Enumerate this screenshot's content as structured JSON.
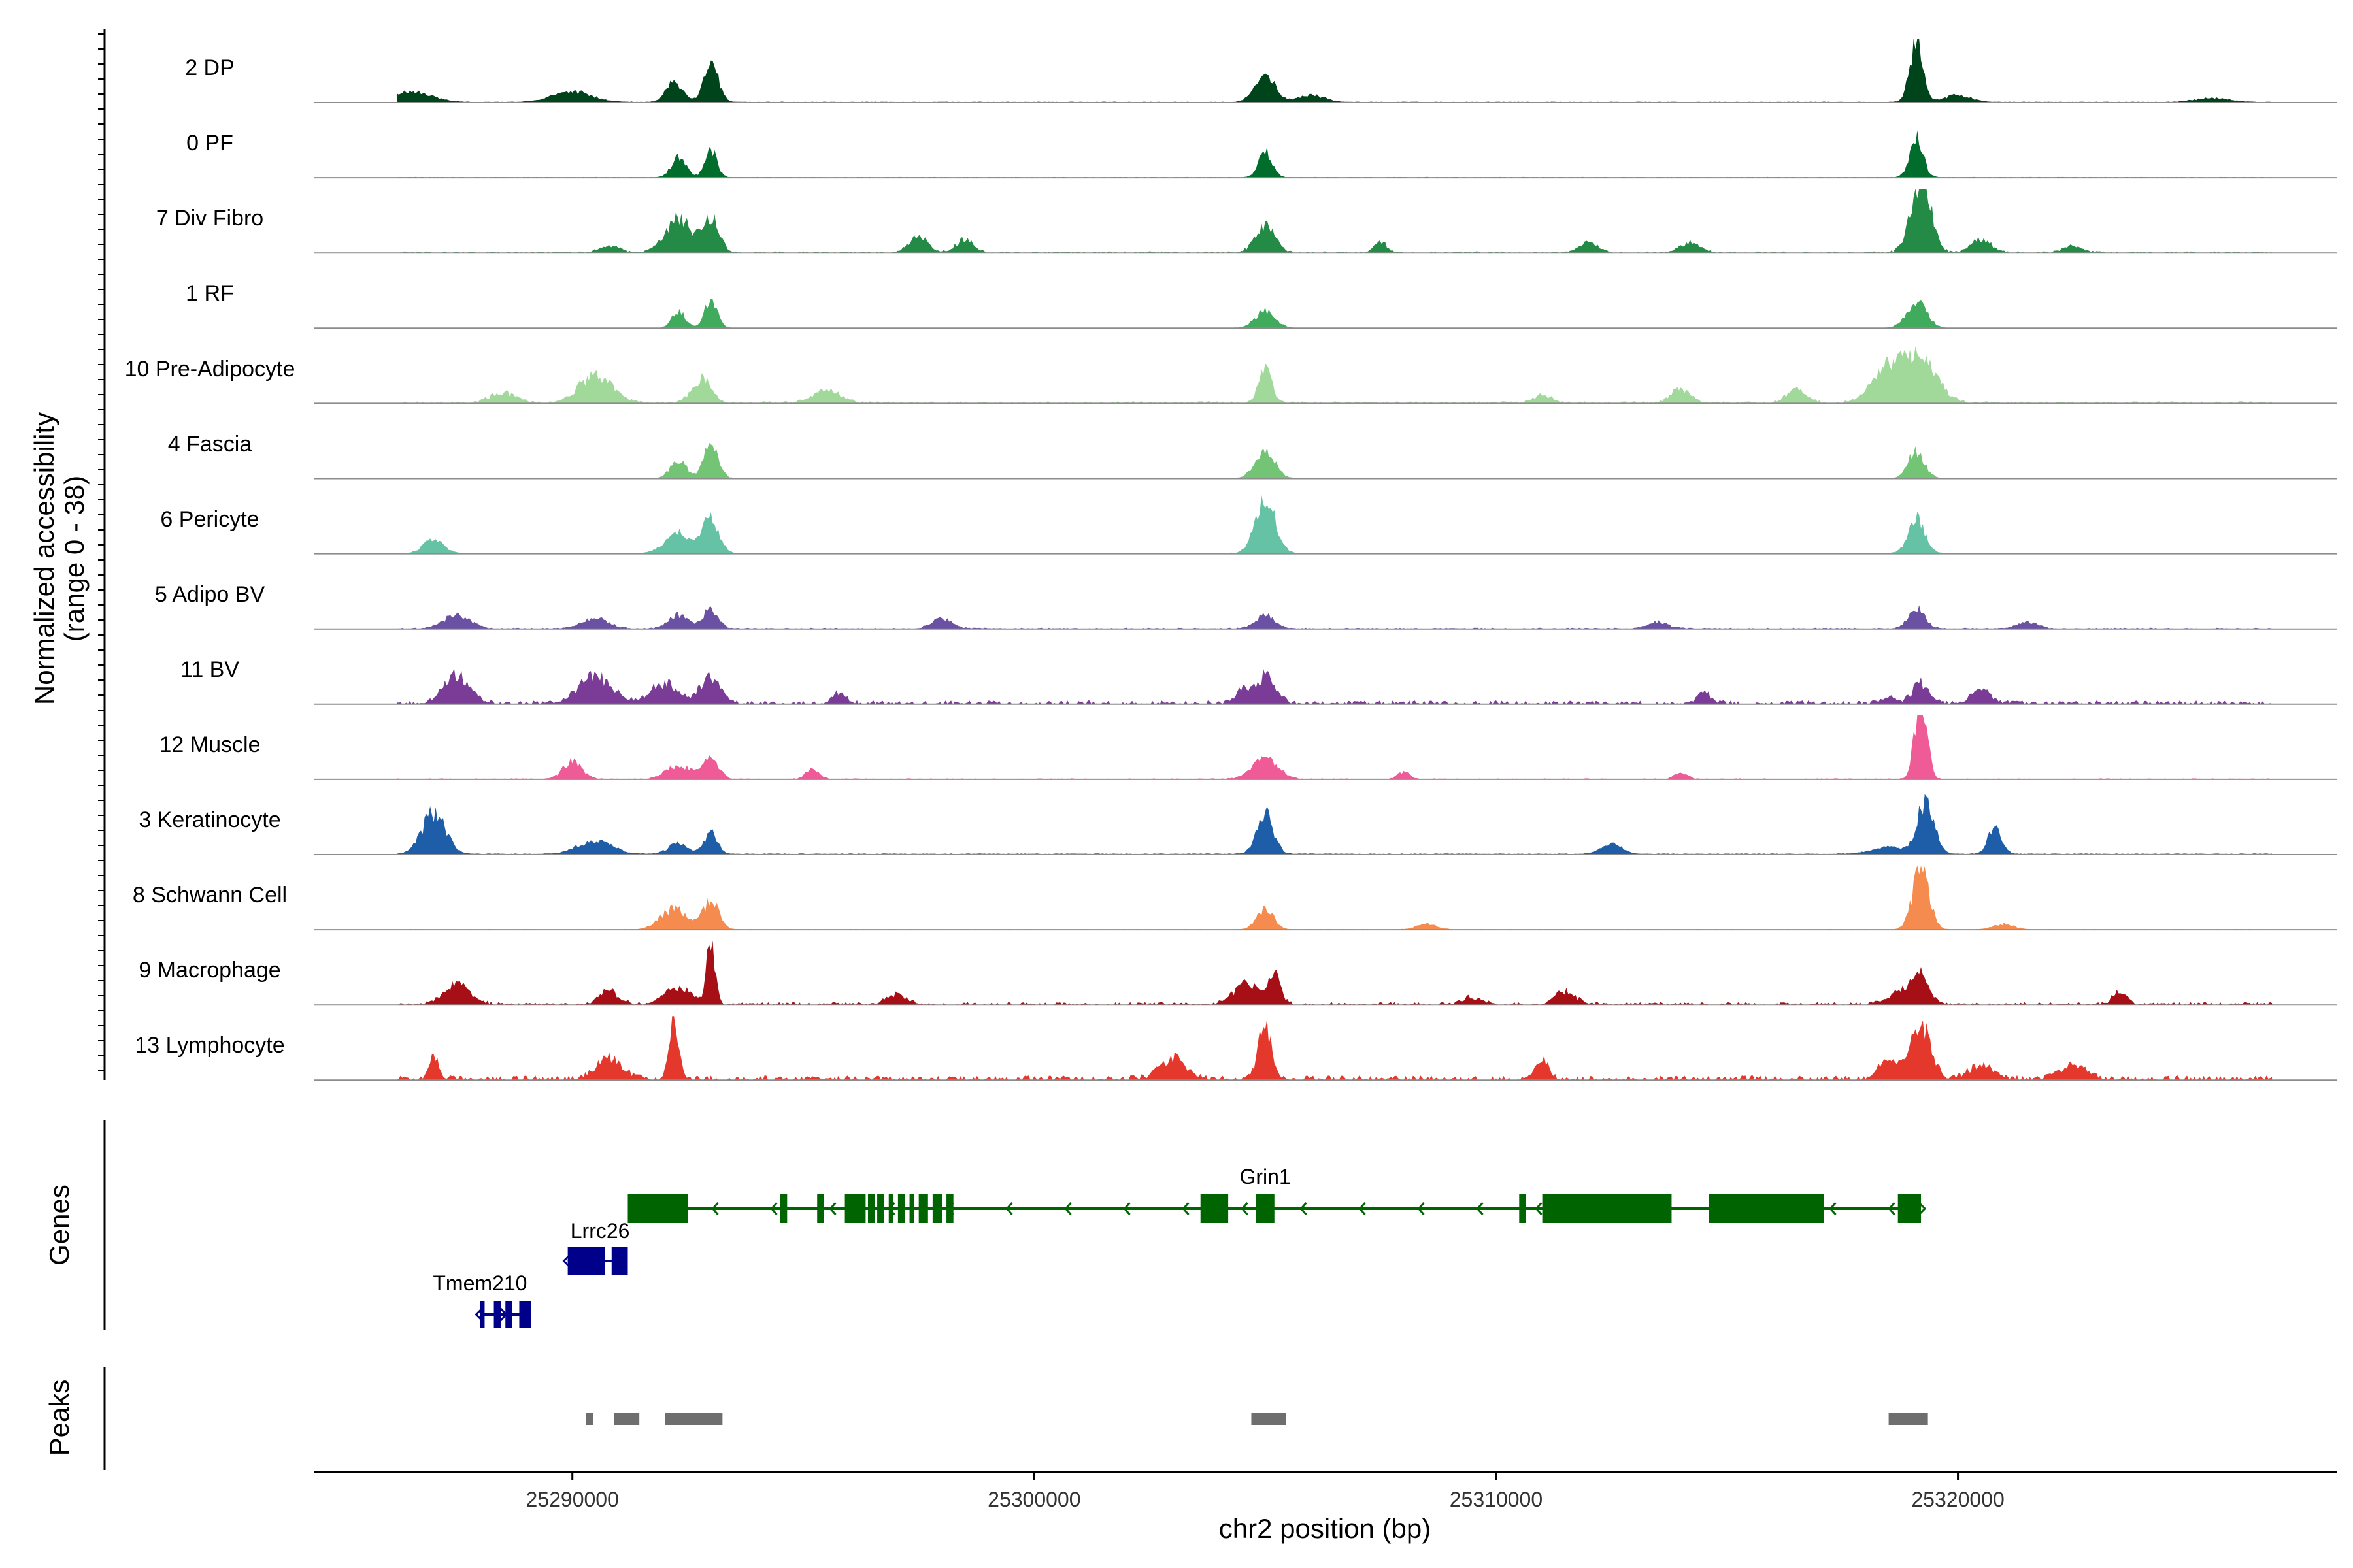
{
  "chart_data": {
    "type": "area",
    "title": "",
    "y_axis_title": "Normalized accessibility",
    "y_axis_subtitle": "(range 0 - 38)",
    "ylim": [
      0,
      38
    ],
    "xlabel": "chr2 position (bp)",
    "xlim": [
      25284400,
      25328200
    ],
    "x_ticks": [
      25290000,
      25300000,
      25310000,
      25320000
    ],
    "x_tick_labels": [
      "25290000",
      "25300000",
      "25310000",
      "25320000"
    ],
    "genes_label": "Genes",
    "peaks_label": "Peaks",
    "tracks": [
      {
        "name": "2 DP",
        "color": "#00441b",
        "baseline": 0.06,
        "noise": 0.05,
        "peaks": [
          [
            25286500,
            1.5,
            600
          ],
          [
            25290000,
            1.5,
            600
          ],
          [
            25292200,
            3,
            250
          ],
          [
            25293000,
            6,
            220
          ],
          [
            25305000,
            4,
            300
          ],
          [
            25306000,
            1,
            400
          ],
          [
            25319100,
            9,
            200
          ],
          [
            25320000,
            1,
            400
          ],
          [
            25325500,
            0.6,
            500
          ]
        ]
      },
      {
        "name": "0 PF",
        "color": "#006d2c",
        "baseline": 0.05,
        "noise": 0.04,
        "peaks": [
          [
            25292300,
            3,
            220
          ],
          [
            25293000,
            4,
            180
          ],
          [
            25305000,
            4,
            200
          ],
          [
            25319100,
            6,
            200
          ]
        ]
      },
      {
        "name": "7 Div Fibro",
        "color": "#238b45",
        "baseline": 0.0,
        "noise": 0.2,
        "peaks": [
          [
            25290800,
            1,
            300
          ],
          [
            25292300,
            5,
            400
          ],
          [
            25293000,
            5,
            250
          ],
          [
            25297500,
            2.5,
            300
          ],
          [
            25298500,
            2,
            250
          ],
          [
            25305000,
            4,
            300
          ],
          [
            25307500,
            1.5,
            200
          ],
          [
            25312000,
            1.5,
            300
          ],
          [
            25314200,
            1.5,
            300
          ],
          [
            25319200,
            11,
            300
          ],
          [
            25320500,
            2,
            300
          ],
          [
            25322500,
            1,
            300
          ]
        ]
      },
      {
        "name": "1 RF",
        "color": "#41ab5d",
        "baseline": 0.03,
        "noise": 0.03,
        "peaks": [
          [
            25292300,
            2.5,
            200
          ],
          [
            25293000,
            4,
            200
          ],
          [
            25305000,
            2.5,
            300
          ],
          [
            25319100,
            4,
            300
          ]
        ]
      },
      {
        "name": "10 Pre-Adipocyte",
        "color": "#a1d99b",
        "baseline": 0.0,
        "noise": 0.25,
        "peaks": [
          [
            25288500,
            1.5,
            400
          ],
          [
            25290500,
            4,
            500
          ],
          [
            25292800,
            3.5,
            300
          ],
          [
            25295500,
            2,
            400
          ],
          [
            25305000,
            5,
            200
          ],
          [
            25311000,
            1,
            300
          ],
          [
            25314000,
            2,
            300
          ],
          [
            25316500,
            2,
            300
          ],
          [
            25318500,
            5,
            500
          ],
          [
            25319200,
            6,
            500
          ]
        ]
      },
      {
        "name": "4 Fascia",
        "color": "#74c476",
        "baseline": 0.03,
        "noise": 0.04,
        "peaks": [
          [
            25292300,
            2.5,
            250
          ],
          [
            25293000,
            5,
            220
          ],
          [
            25305000,
            4,
            300
          ],
          [
            25319100,
            4,
            250
          ]
        ]
      },
      {
        "name": "6 Pericyte",
        "color": "#66c2a5",
        "baseline": 0.05,
        "noise": 0.07,
        "peaks": [
          [
            25287000,
            2,
            300
          ],
          [
            25292300,
            3,
            400
          ],
          [
            25293000,
            5,
            250
          ],
          [
            25305000,
            8,
            300
          ],
          [
            25319100,
            5,
            250
          ]
        ]
      },
      {
        "name": "5 Adipo BV",
        "color": "#6a51a3",
        "baseline": 0.03,
        "noise": 0.12,
        "peaks": [
          [
            25287500,
            2,
            400
          ],
          [
            25290500,
            1.5,
            400
          ],
          [
            25292300,
            2,
            300
          ],
          [
            25293000,
            3,
            220
          ],
          [
            25298000,
            1.5,
            300
          ],
          [
            25305000,
            2,
            300
          ],
          [
            25313500,
            1,
            300
          ],
          [
            25319100,
            3,
            250
          ],
          [
            25321500,
            1,
            300
          ]
        ]
      },
      {
        "name": "11 BV",
        "color": "#7a3c96",
        "baseline": 0.0,
        "noise": 0.45,
        "peaks": [
          [
            25287500,
            4,
            400
          ],
          [
            25290500,
            4,
            500
          ],
          [
            25292000,
            3,
            400
          ],
          [
            25293000,
            4,
            300
          ],
          [
            25295800,
            1.5,
            200
          ],
          [
            25305000,
            4,
            300
          ],
          [
            25304500,
            2,
            200
          ],
          [
            25314500,
            1.5,
            200
          ],
          [
            25318500,
            1,
            200
          ],
          [
            25319200,
            3,
            250
          ],
          [
            25320500,
            2,
            300
          ]
        ]
      },
      {
        "name": "12 Muscle",
        "color": "#ef5b96",
        "baseline": 0.0,
        "noise": 0.12,
        "peaks": [
          [
            25290000,
            2.5,
            300
          ],
          [
            25292300,
            2,
            400
          ],
          [
            25293000,
            3,
            250
          ],
          [
            25295200,
            1.5,
            200
          ],
          [
            25305000,
            3,
            400
          ],
          [
            25308000,
            1,
            200
          ],
          [
            25314000,
            1,
            200
          ],
          [
            25319200,
            13,
            180
          ]
        ]
      },
      {
        "name": "3 Keratinocyte",
        "color": "#1e5ea8",
        "baseline": 0.08,
        "noise": 0.06,
        "peaks": [
          [
            25287000,
            6,
            350
          ],
          [
            25290500,
            2,
            500
          ],
          [
            25292300,
            1.5,
            300
          ],
          [
            25293000,
            3,
            200
          ],
          [
            25305000,
            6,
            250
          ],
          [
            25312500,
            1.5,
            300
          ],
          [
            25318500,
            1,
            500
          ],
          [
            25319300,
            8,
            250
          ],
          [
            25320800,
            4,
            200
          ]
        ]
      },
      {
        "name": "8 Schwann Cell",
        "color": "#f58b4e",
        "baseline": 0.03,
        "noise": 0.05,
        "peaks": [
          [
            25292200,
            3,
            400
          ],
          [
            25293000,
            4,
            250
          ],
          [
            25305000,
            3,
            250
          ],
          [
            25308500,
            0.8,
            300
          ],
          [
            25319200,
            9,
            250
          ],
          [
            25321000,
            0.8,
            300
          ]
        ]
      },
      {
        "name": "9 Macrophage",
        "color": "#a50f15",
        "baseline": 0.0,
        "noise": 0.35,
        "peaks": [
          [
            25287500,
            3,
            400
          ],
          [
            25290800,
            2,
            300
          ],
          [
            25292300,
            2.5,
            400
          ],
          [
            25293000,
            10,
            120
          ],
          [
            25297000,
            1.5,
            300
          ],
          [
            25304600,
            3,
            400
          ],
          [
            25305200,
            4,
            200
          ],
          [
            25309500,
            1,
            300
          ],
          [
            25311500,
            2,
            300
          ],
          [
            25318800,
            2,
            400
          ],
          [
            25319200,
            4,
            250
          ],
          [
            25323500,
            2,
            200
          ]
        ]
      },
      {
        "name": "13 Lymphocyte",
        "color": "#e5382d",
        "baseline": 0.0,
        "noise": 0.55,
        "peaks": [
          [
            25287000,
            3,
            150
          ],
          [
            25290800,
            3,
            400
          ],
          [
            25292200,
            9,
            150
          ],
          [
            25303000,
            3,
            400
          ],
          [
            25305000,
            8,
            200
          ],
          [
            25311000,
            3,
            200
          ],
          [
            25318500,
            3,
            300
          ],
          [
            25319200,
            8,
            300
          ],
          [
            25320500,
            2,
            400
          ],
          [
            25322500,
            2,
            400
          ]
        ]
      }
    ],
    "genes": [
      {
        "name": "Grin1",
        "color": "#006400",
        "strand": "-",
        "start": 25291200,
        "end": 25319200,
        "label_x": 25305000,
        "row": 0,
        "exons": [
          [
            25291200,
            25292500
          ],
          [
            25294500,
            25294650
          ],
          [
            25295300,
            25295450
          ],
          [
            25295900,
            25296350
          ],
          [
            25296400,
            25296550
          ],
          [
            25296600,
            25296750
          ],
          [
            25296850,
            25296950
          ],
          [
            25297050,
            25297200
          ],
          [
            25297300,
            25297400
          ],
          [
            25297500,
            25297700
          ],
          [
            25297800,
            25298000
          ],
          [
            25298100,
            25298250
          ],
          [
            25303600,
            25304200
          ],
          [
            25304800,
            25305200
          ],
          [
            25310500,
            25310650
          ],
          [
            25311000,
            25313800
          ],
          [
            25314600,
            25317100
          ],
          [
            25318700,
            25319200
          ]
        ]
      },
      {
        "name": "Lrrc26",
        "color": "#00008b",
        "strand": "+",
        "start": 25289900,
        "end": 25291200,
        "label_x": 25290600,
        "row": 1,
        "exons": [
          [
            25289900,
            25290700
          ],
          [
            25290850,
            25291200
          ]
        ]
      },
      {
        "name": "Tmem210",
        "color": "#00008b",
        "strand": "+",
        "start": 25288000,
        "end": 25289100,
        "label_x": 25288000,
        "row": 2,
        "exons": [
          [
            25288000,
            25288100
          ],
          [
            25288300,
            25288450
          ],
          [
            25288550,
            25288700
          ],
          [
            25288850,
            25289100
          ]
        ]
      }
    ],
    "peaks": [
      [
        25290300,
        25290450
      ],
      [
        25290900,
        25291450
      ],
      [
        25292000,
        25293250
      ],
      [
        25304700,
        25305450
      ],
      [
        25318500,
        25319350
      ]
    ]
  }
}
